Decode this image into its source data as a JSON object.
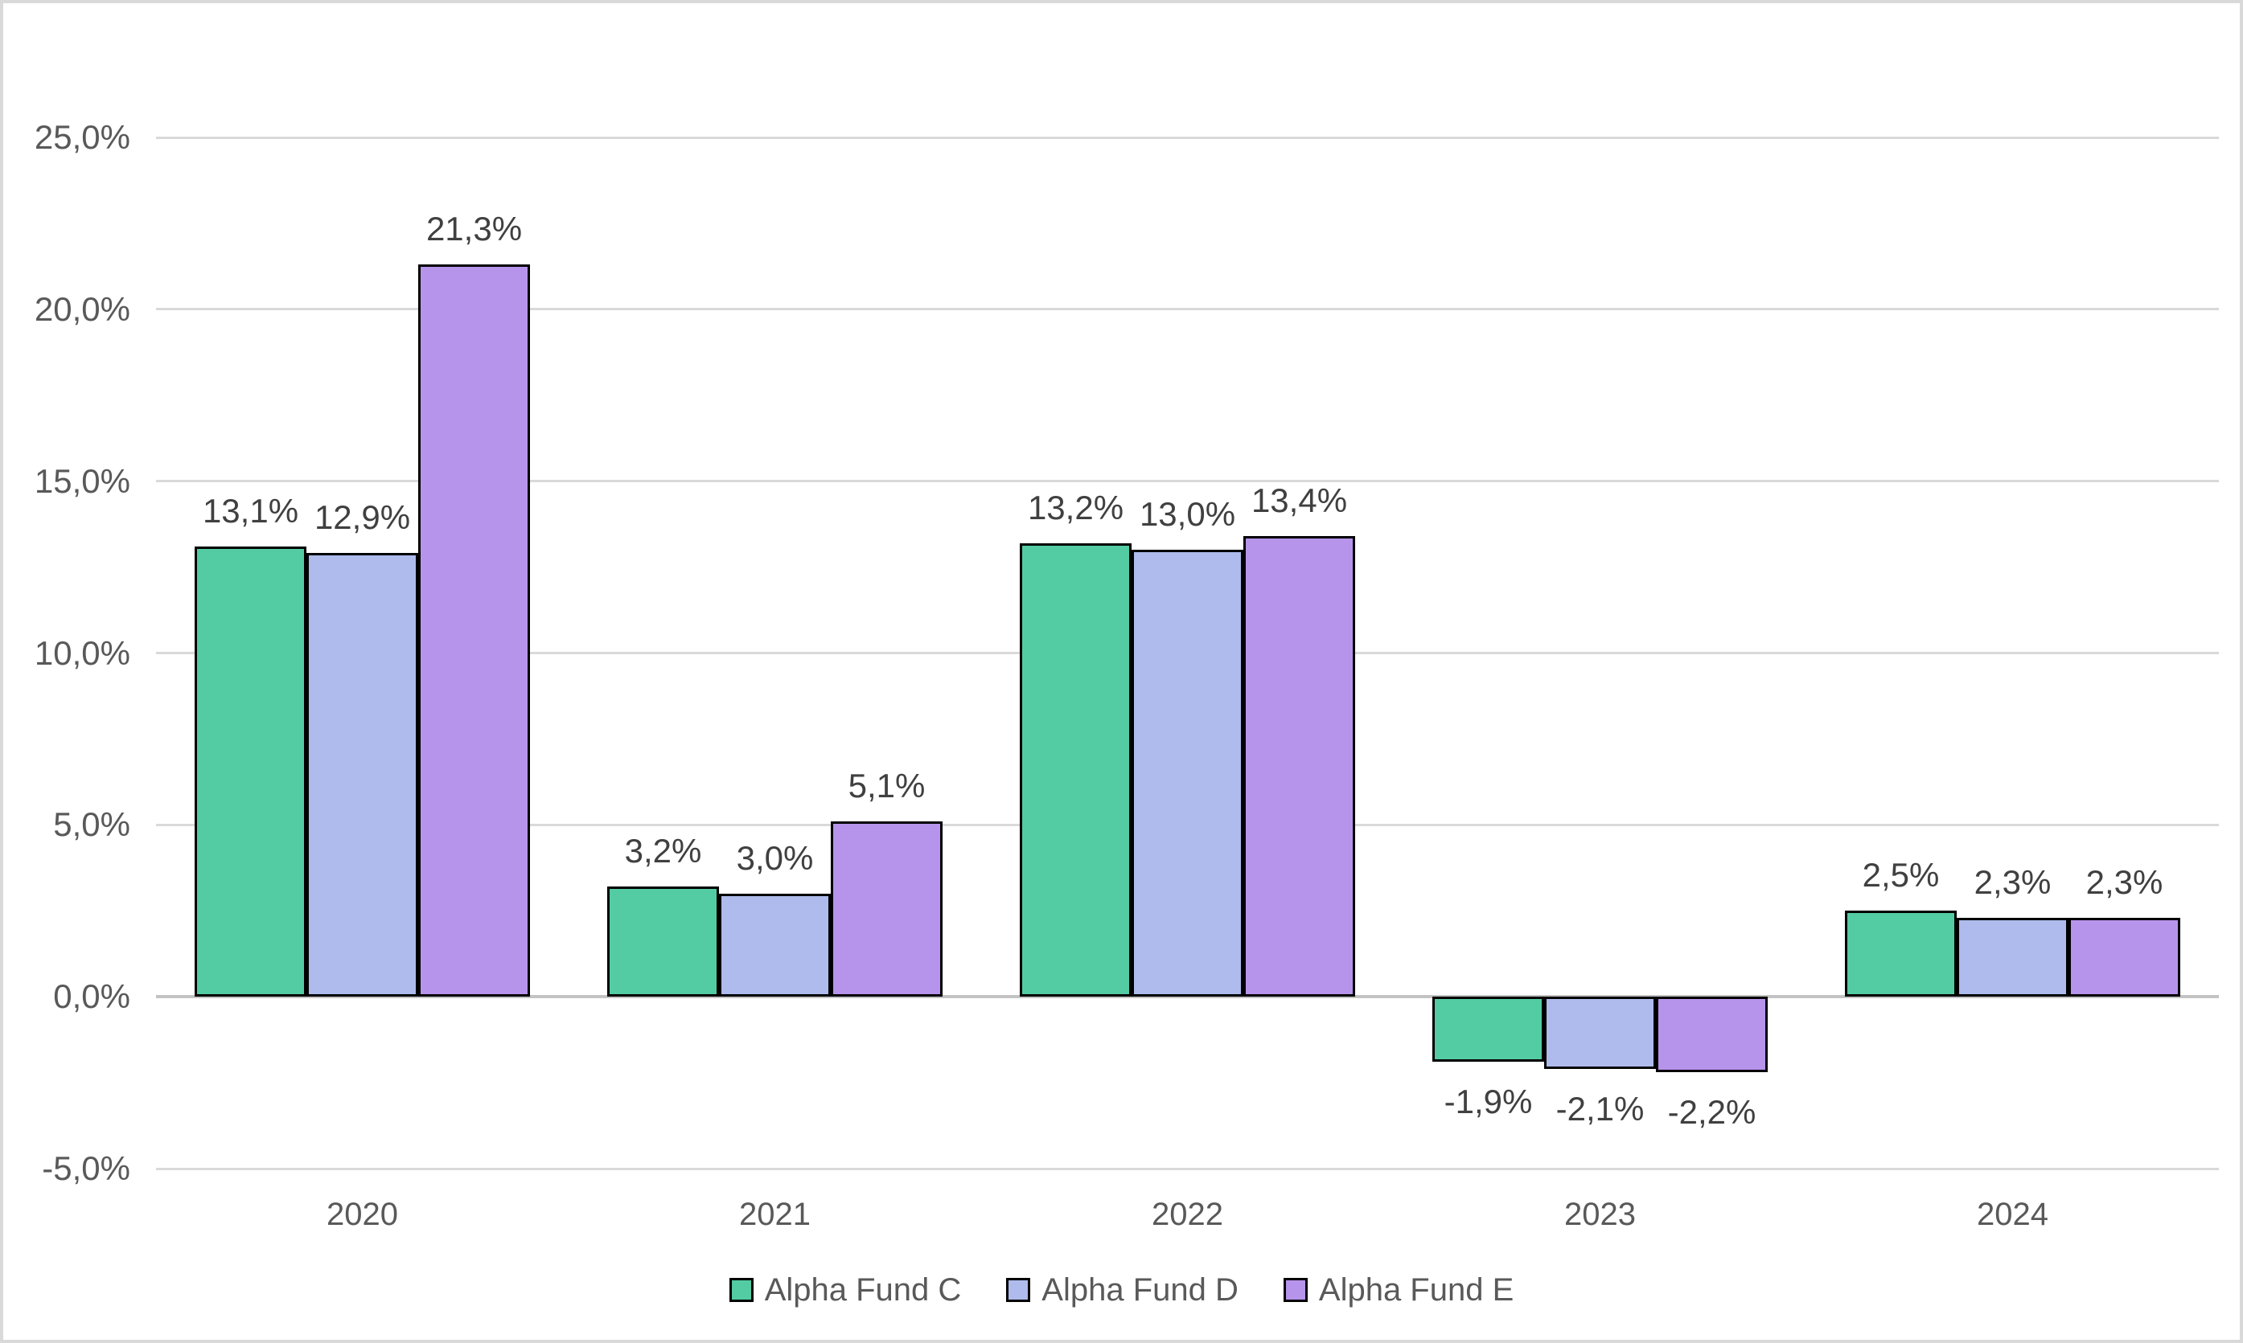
{
  "chart_data": {
    "type": "bar",
    "title": "",
    "categories": [
      "2020",
      "2021",
      "2022",
      "2023",
      "2024"
    ],
    "series": [
      {
        "name": "Alpha Fund C",
        "color": "#53CBA3",
        "values": [
          13.1,
          3.2,
          13.2,
          -1.9,
          2.5
        ],
        "value_labels": [
          "13,1%",
          "3,2%",
          "13,2%",
          "-1,9%",
          "2,5%"
        ]
      },
      {
        "name": "Alpha Fund D",
        "color": "#AEBBEC",
        "values": [
          12.9,
          3.0,
          13.0,
          -2.1,
          2.3
        ],
        "value_labels": [
          "12,9%",
          "3,0%",
          "13,0%",
          "-2,1%",
          "2,3%"
        ]
      },
      {
        "name": "Alpha Fund E",
        "color": "#B794EC",
        "values": [
          21.3,
          5.1,
          13.4,
          -2.2,
          2.3
        ],
        "value_labels": [
          "21,3%",
          "5,1%",
          "13,4%",
          "-2,2%",
          "2,3%"
        ]
      }
    ],
    "y_axis": {
      "min": -5,
      "max": 25,
      "step": 5,
      "tick_values": [
        25,
        20,
        15,
        10,
        5,
        0,
        -5
      ],
      "tick_labels": [
        "25,0%",
        "20,0%",
        "15,0%",
        "10,0%",
        "5,0%",
        "0,0%",
        "-5,0%"
      ]
    },
    "xlabel": "",
    "ylabel": "",
    "grid": true,
    "legend_position": "bottom",
    "colors": {
      "bar_border": "#000000",
      "gridline": "#d9d9d9",
      "zero_axis_line": "#c3c3c3",
      "tick_text": "#595959",
      "data_label_text": "#404040",
      "frame_border": "#d9d9d9",
      "background": "#ffffff"
    }
  }
}
